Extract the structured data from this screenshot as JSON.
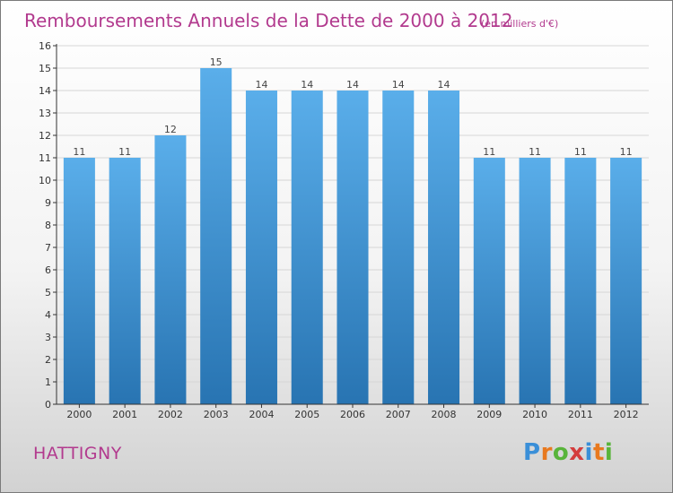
{
  "title": "Remboursements Annuels de la Dette de 2000 à 2012",
  "unit_note": "(en milliers d'€)",
  "commune": "HATTIGNY",
  "logo": {
    "letters": [
      "P",
      "r",
      "o",
      "x",
      "i",
      "t",
      "i"
    ],
    "colors": [
      "#3a8fd8",
      "#e8791f",
      "#58b43a",
      "#d43d3d",
      "#3a8fd8",
      "#e8791f",
      "#58b43a"
    ]
  },
  "colors": {
    "title": "#b23a8e",
    "bar_top": "#5aaeea",
    "bar_bottom": "#2874b2",
    "axis": "#333333",
    "grid": "#d6d6d6"
  },
  "chart_data": {
    "type": "bar",
    "categories": [
      "2000",
      "2001",
      "2002",
      "2003",
      "2004",
      "2005",
      "2006",
      "2007",
      "2008",
      "2009",
      "2010",
      "2011",
      "2012"
    ],
    "values": [
      11,
      11,
      12,
      15,
      14,
      14,
      14,
      14,
      14,
      11,
      11,
      11,
      11
    ],
    "data_labels": [
      "11",
      "11",
      "12",
      "15",
      "14",
      "14",
      "14",
      "14",
      "14",
      "11",
      "11",
      "11",
      "11"
    ],
    "yticks": [
      "0",
      "1",
      "2",
      "3",
      "4",
      "5",
      "6",
      "7",
      "8",
      "9",
      "10",
      "11",
      "12",
      "13",
      "14",
      "15",
      "16"
    ],
    "ylim": [
      0,
      16
    ],
    "grid": true,
    "title": "Remboursements Annuels de la Dette de 2000 à 2012",
    "xlabel": "",
    "ylabel": ""
  }
}
